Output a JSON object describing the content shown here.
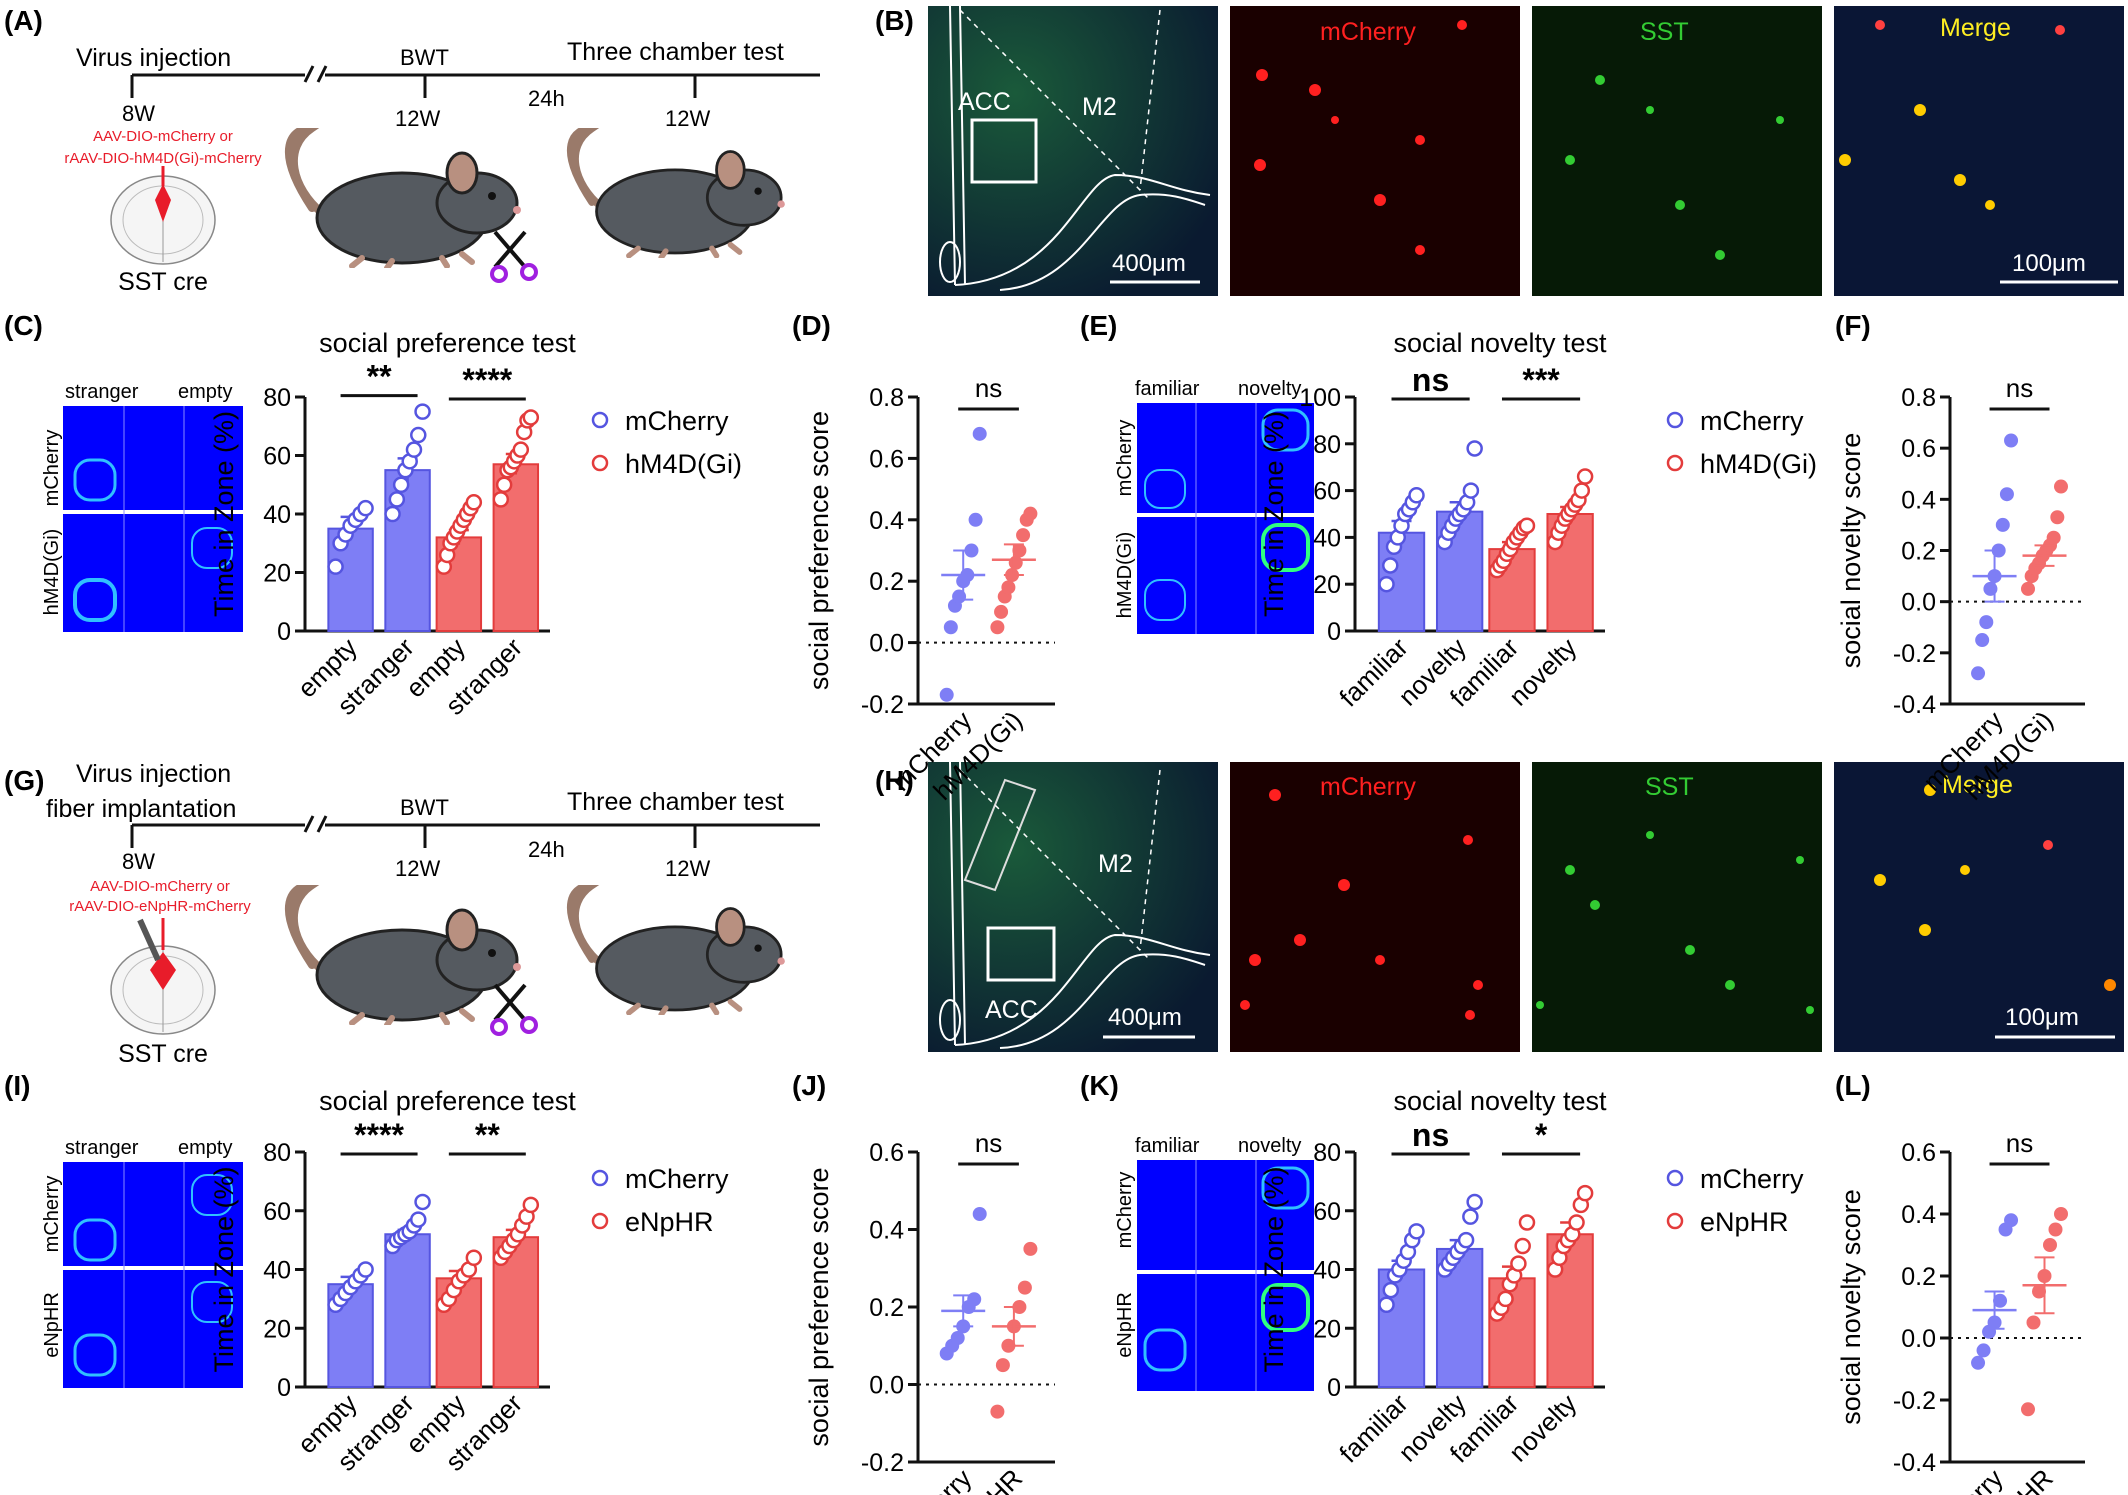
{
  "panel_labels": {
    "A": "(A)",
    "B": "(B)",
    "C": "(C)",
    "D": "(D)",
    "E": "(E)",
    "F": "(F)",
    "G": "(G)",
    "H": "(H)",
    "I": "(I)",
    "J": "(J)",
    "K": "(K)",
    "L": "(L)"
  },
  "colors": {
    "blue": "#7e7ef5",
    "blue_dark": "#5555e0",
    "red": "#f26d6d",
    "red_dark": "#e33c3c",
    "inj_red": "#e81c2a"
  },
  "timeline_A": {
    "inj": "Virus injection",
    "inj2": "",
    "wk8": "8W",
    "bwt": "BWT",
    "wk12a": "12W",
    "h24": "24h",
    "tct": "Three chamber test",
    "wk12b": "12W",
    "virus1": "AAV-DIO-mCherry or",
    "virus2": "rAAV-DIO-hM4D(Gi)-mCherry",
    "mouse": "SST cre"
  },
  "timeline_G": {
    "inj": "Virus injection",
    "inj2": "fiber implantation",
    "wk8": "8W",
    "bwt": "BWT",
    "wk12a": "12W",
    "h24": "24h",
    "tct": "Three chamber test",
    "wk12b": "12W",
    "virus1": "AAV-DIO-mCherry or",
    "virus2": "rAAV-DIO-eNpHR-mCherry",
    "mouse": "SST cre"
  },
  "histology_B": {
    "acc": "ACC",
    "m2": "M2",
    "scale1": "400μm",
    "mch": "mCherry",
    "sst": "SST",
    "merge": "Merge",
    "scale2": "100μm"
  },
  "histology_H": {
    "acc": "ACC",
    "m2": "M2",
    "scale1": "400μm",
    "mch": "mCherry",
    "sst": "SST",
    "merge": "Merge",
    "scale2": "100μm"
  },
  "heat_C": {
    "col1": "stranger",
    "col2": "empty",
    "row1": "mCherry",
    "row2": "hM4D(Gi)"
  },
  "heat_E": {
    "col1": "familiar",
    "col2": "novelty",
    "row1": "mCherry",
    "row2": "hM4D(Gi)"
  },
  "heat_I": {
    "col1": "stranger",
    "col2": "empty",
    "row1": "mCherry",
    "row2": "eNpHR"
  },
  "heat_K": {
    "col1": "familiar",
    "col2": "novelty",
    "row1": "mCherry",
    "row2": "eNpHR"
  },
  "chart_data": [
    {
      "panel": "C",
      "type": "bar",
      "title": "social preference test",
      "ylabel": "Time in Zone (%)",
      "ylim": [
        0,
        80
      ],
      "yticks": [
        "0",
        "20",
        "40",
        "60",
        "80"
      ],
      "categories": [
        "empty",
        "stranger",
        "empty",
        "stranger"
      ],
      "bar_values": [
        35,
        55,
        32,
        57
      ],
      "bar_sem": [
        4,
        4,
        2.5,
        3.5
      ],
      "points": [
        [
          22,
          30,
          33,
          36,
          38,
          40,
          42
        ],
        [
          40,
          45,
          50,
          55,
          58,
          62,
          67,
          75
        ],
        [
          22,
          26,
          30,
          32,
          34,
          36,
          38,
          40,
          42,
          44
        ],
        [
          45,
          50,
          55,
          56,
          58,
          60,
          62,
          68,
          72,
          73
        ]
      ],
      "sig": [
        "**",
        "****"
      ],
      "legend": [
        {
          "label": "mCherry",
          "color": "blue"
        },
        {
          "label": "hM4D(Gi)",
          "color": "red"
        }
      ]
    },
    {
      "panel": "D",
      "type": "scatter",
      "ylabel": "social preference score",
      "ylim": [
        -0.2,
        0.8
      ],
      "yticks": [
        "-0.2",
        "0.0",
        "0.2",
        "0.4",
        "0.6",
        "0.8"
      ],
      "categories": [
        "mCherry",
        "hM4D(Gi)"
      ],
      "means": [
        0.22,
        0.27
      ],
      "sem": [
        0.08,
        0.05
      ],
      "points": [
        [
          -0.17,
          0.05,
          0.12,
          0.15,
          0.2,
          0.22,
          0.3,
          0.4,
          0.68
        ],
        [
          0.05,
          0.1,
          0.15,
          0.18,
          0.22,
          0.26,
          0.3,
          0.35,
          0.4,
          0.42
        ]
      ],
      "sig": "ns"
    },
    {
      "panel": "E",
      "type": "bar",
      "title": "social novelty test",
      "ylabel": "Time in Zone (%)",
      "ylim": [
        0,
        100
      ],
      "yticks": [
        "0",
        "20",
        "40",
        "60",
        "80",
        "100"
      ],
      "categories": [
        "familiar",
        "novelty",
        "familiar",
        "novelty"
      ],
      "bar_values": [
        42,
        51,
        35,
        50
      ],
      "bar_sem": [
        5,
        4,
        3,
        3
      ],
      "points": [
        [
          20,
          28,
          36,
          40,
          45,
          50,
          52,
          55,
          58
        ],
        [
          38,
          42,
          45,
          48,
          50,
          52,
          55,
          60,
          78
        ],
        [
          26,
          28,
          30,
          33,
          35,
          38,
          40,
          42,
          44,
          45
        ],
        [
          38,
          42,
          45,
          48,
          50,
          52,
          54,
          56,
          60,
          66
        ]
      ],
      "sig": [
        "ns",
        "***"
      ],
      "legend": [
        {
          "label": "mCherry",
          "color": "blue"
        },
        {
          "label": "hM4D(Gi)",
          "color": "red"
        }
      ]
    },
    {
      "panel": "F",
      "type": "scatter",
      "ylabel": "social novelty score",
      "ylim": [
        -0.4,
        0.8
      ],
      "yticks": [
        "-0.4",
        "-0.2",
        "0.0",
        "0.2",
        "0.4",
        "0.6",
        "0.8"
      ],
      "categories": [
        "mCherry",
        "hM4D(Gi)"
      ],
      "means": [
        0.1,
        0.18
      ],
      "sem": [
        0.1,
        0.04
      ],
      "points": [
        [
          -0.28,
          -0.15,
          -0.08,
          0.05,
          0.1,
          0.2,
          0.3,
          0.42,
          0.63
        ],
        [
          0.05,
          0.1,
          0.13,
          0.15,
          0.18,
          0.2,
          0.22,
          0.25,
          0.33,
          0.45
        ]
      ],
      "sig": "ns"
    },
    {
      "panel": "I",
      "type": "bar",
      "title": "social preference test",
      "ylabel": "Time in Zone (%)",
      "ylim": [
        0,
        80
      ],
      "yticks": [
        "0",
        "20",
        "40",
        "60",
        "80"
      ],
      "categories": [
        "empty",
        "stranger",
        "empty",
        "stranger"
      ],
      "bar_values": [
        35,
        52,
        37,
        51
      ],
      "bar_sem": [
        2.5,
        1.5,
        2.5,
        2.5
      ],
      "points": [
        [
          28,
          30,
          32,
          34,
          36,
          38,
          40
        ],
        [
          48,
          50,
          51,
          52,
          53,
          55,
          57,
          63
        ],
        [
          28,
          30,
          33,
          36,
          38,
          40,
          44
        ],
        [
          44,
          46,
          48,
          50,
          52,
          55,
          58,
          62
        ]
      ],
      "sig": [
        "****",
        "**"
      ],
      "legend": [
        {
          "label": "mCherry",
          "color": "blue"
        },
        {
          "label": "eNpHR",
          "color": "red"
        }
      ]
    },
    {
      "panel": "J",
      "type": "scatter",
      "ylabel": "social preference score",
      "ylim": [
        -0.2,
        0.6
      ],
      "yticks": [
        "-0.2",
        "0.0",
        "0.2",
        "0.4",
        "0.6"
      ],
      "categories": [
        "mCherry",
        "eNpHR"
      ],
      "means": [
        0.19,
        0.15
      ],
      "sem": [
        0.04,
        0.05
      ],
      "points": [
        [
          0.08,
          0.1,
          0.12,
          0.15,
          0.2,
          0.22,
          0.44
        ],
        [
          -0.07,
          0.05,
          0.1,
          0.15,
          0.2,
          0.25,
          0.35
        ]
      ],
      "sig": "ns"
    },
    {
      "panel": "K",
      "type": "bar",
      "title": "social novelty test",
      "ylabel": "Time in Zone (%)",
      "ylim": [
        0,
        80
      ],
      "yticks": [
        "0",
        "20",
        "40",
        "60",
        "80"
      ],
      "categories": [
        "familiar",
        "novelty",
        "familiar",
        "novelty"
      ],
      "bar_values": [
        40,
        47,
        37,
        52
      ],
      "bar_sem": [
        3,
        3,
        4,
        4
      ],
      "points": [
        [
          28,
          33,
          38,
          40,
          43,
          46,
          50,
          53
        ],
        [
          40,
          42,
          44,
          46,
          48,
          50,
          58,
          63
        ],
        [
          25,
          27,
          30,
          35,
          38,
          42,
          48,
          56
        ],
        [
          40,
          44,
          48,
          50,
          52,
          56,
          62,
          66
        ]
      ],
      "sig": [
        "ns",
        "*"
      ],
      "legend": [
        {
          "label": "mCherry",
          "color": "blue"
        },
        {
          "label": "eNpHR",
          "color": "red"
        }
      ]
    },
    {
      "panel": "L",
      "type": "scatter",
      "ylabel": "social novelty score",
      "ylim": [
        -0.4,
        0.6
      ],
      "yticks": [
        "-0.4",
        "-0.2",
        "0.0",
        "0.2",
        "0.4",
        "0.6"
      ],
      "categories": [
        "mCherry",
        "eNpHR"
      ],
      "means": [
        0.09,
        0.17
      ],
      "sem": [
        0.06,
        0.09
      ],
      "points": [
        [
          -0.08,
          -0.04,
          0.02,
          0.05,
          0.12,
          0.35,
          0.38
        ],
        [
          -0.23,
          0.05,
          0.15,
          0.2,
          0.3,
          0.35,
          0.4
        ]
      ],
      "sig": "ns"
    }
  ]
}
